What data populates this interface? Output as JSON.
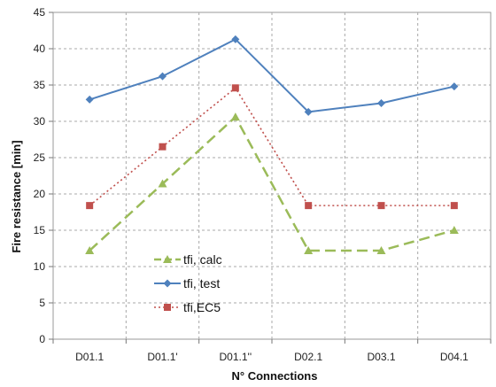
{
  "chart_data": {
    "type": "line",
    "xlabel": "N° Connections",
    "ylabel": "Fire resistance [min]",
    "ylim": [
      0,
      45
    ],
    "yticks": [
      0,
      5,
      10,
      15,
      20,
      25,
      30,
      35,
      40,
      45
    ],
    "categories": [
      "D01.1",
      "D01.1'",
      "D01.1''",
      "D02.1",
      "D03.1",
      "D04.1"
    ],
    "grid": true,
    "legend_position": "lower-left",
    "series": [
      {
        "name": "tfi, calc",
        "values": [
          12.2,
          21.4,
          30.6,
          12.2,
          12.2,
          15.0
        ],
        "color": "#9bbb59",
        "line_style": "dashed",
        "marker": "triangle"
      },
      {
        "name": "tfi, test",
        "values": [
          33.0,
          36.2,
          41.3,
          31.3,
          32.5,
          34.8
        ],
        "color": "#4f81bd",
        "line_style": "solid",
        "marker": "diamond"
      },
      {
        "name": "tfi,EC5",
        "values": [
          18.4,
          26.5,
          34.6,
          18.4,
          18.4,
          18.4
        ],
        "color": "#c0504d",
        "line_style": "dotted",
        "marker": "square"
      }
    ]
  }
}
